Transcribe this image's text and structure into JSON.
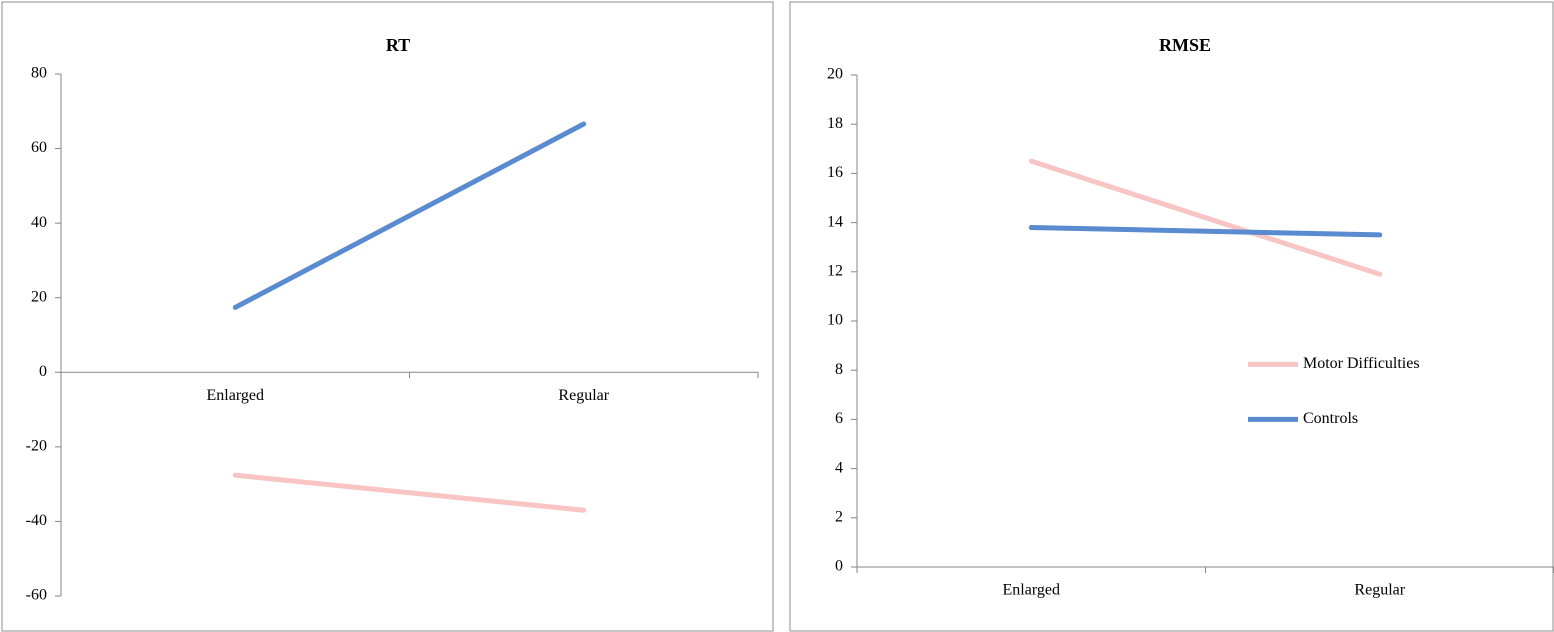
{
  "chart_data": [
    {
      "type": "line",
      "title": "RT",
      "categories": [
        "Enlarged",
        "Regular"
      ],
      "series": [
        {
          "color": "#f8c4c4",
          "values": [
            -27.6,
            -37.0
          ]
        },
        {
          "color": "#5a8ad0",
          "values": [
            17.4,
            66.6
          ]
        }
      ],
      "ylim": [
        -60,
        80
      ],
      "yticks": [
        -60,
        -40,
        -20,
        0,
        20,
        40,
        60,
        80
      ]
    },
    {
      "type": "line",
      "title": "RMSE",
      "categories": [
        "Enlarged",
        "Regular"
      ],
      "series": [
        {
          "name": "Motor Difficulties",
          "color": "#f8c4c4",
          "values": [
            16.5,
            11.9
          ]
        },
        {
          "name": "Controls",
          "color": "#5a8ad0",
          "values": [
            13.8,
            13.5
          ]
        }
      ],
      "ylim": [
        0,
        20
      ],
      "yticks": [
        0,
        2,
        4,
        6,
        8,
        10,
        12,
        14,
        16,
        18,
        20
      ],
      "legend": "right"
    }
  ]
}
